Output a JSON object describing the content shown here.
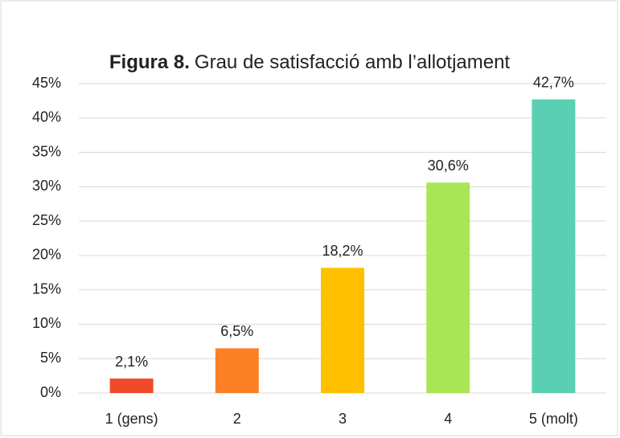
{
  "chart_data": {
    "type": "bar",
    "figure_label": "Figura 8.",
    "title": "Grau de satisfacció amb l’allotjament",
    "categories": [
      "1 (gens)",
      "2",
      "3",
      "4",
      "5 (molt)"
    ],
    "values": [
      2.1,
      6.5,
      18.2,
      30.6,
      42.7
    ],
    "value_labels": [
      "2,1%",
      "6,5%",
      "18,2%",
      "30,6%",
      "42,7%"
    ],
    "colors": [
      "#f04a2a",
      "#fd8025",
      "#ffc000",
      "#a9e655",
      "#5bcfb3"
    ],
    "ylim": [
      0,
      45
    ],
    "yticks": [
      {
        "value": 0,
        "label": "0%"
      },
      {
        "value": 5,
        "label": "5%"
      },
      {
        "value": 10,
        "label": "10%"
      },
      {
        "value": 15,
        "label": "15%"
      },
      {
        "value": 20,
        "label": "20%"
      },
      {
        "value": 25,
        "label": "25%"
      },
      {
        "value": 30,
        "label": "30%"
      },
      {
        "value": 35,
        "label": "35%"
      },
      {
        "value": 40,
        "label": "40%"
      },
      {
        "value": 45,
        "label": "45%"
      }
    ],
    "grid": true
  }
}
